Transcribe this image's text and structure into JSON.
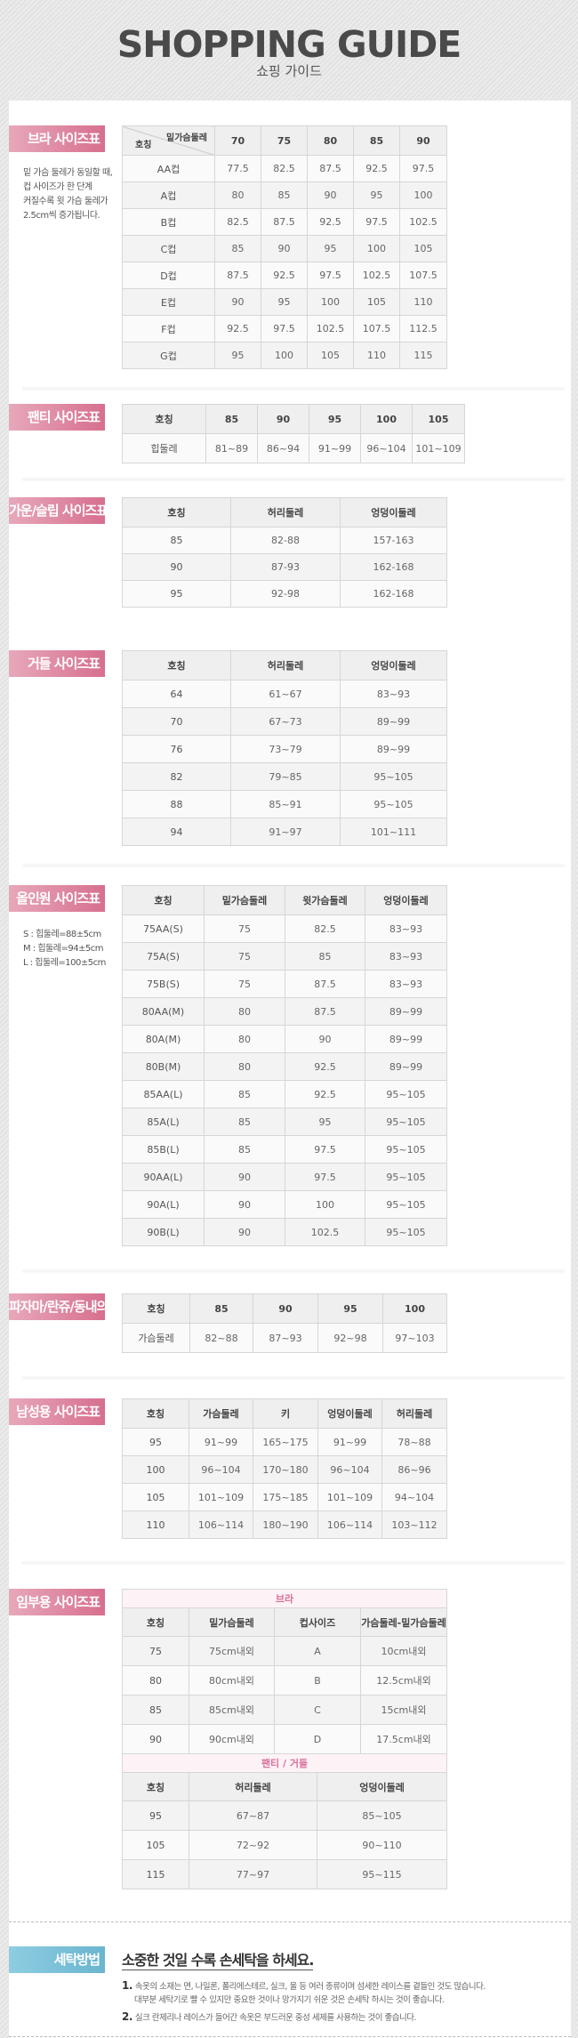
{
  "header": {
    "title": "SHOPPING GUIDE",
    "subtitle": "쇼핑 가이드"
  },
  "bra": {
    "label": "브라 사이즈표",
    "note": [
      "밑 가슴 둘레가 동일할 때,",
      "컵 사이즈가 한 단계",
      "커질수록 윗 가슴 둘레가",
      "2.5cm씩 증가됩니다."
    ],
    "corner_top": "밑가슴둘레",
    "corner_bottom": "호칭",
    "header": [
      "70",
      "75",
      "80",
      "85",
      "90"
    ],
    "rows": [
      [
        "AA컵",
        "77.5",
        "82.5",
        "87.5",
        "92.5",
        "97.5"
      ],
      [
        "A컵",
        "80",
        "85",
        "90",
        "95",
        "100"
      ],
      [
        "B컵",
        "82.5",
        "87.5",
        "92.5",
        "97.5",
        "102.5"
      ],
      [
        "C컵",
        "85",
        "90",
        "95",
        "100",
        "105"
      ],
      [
        "D컵",
        "87.5",
        "92.5",
        "97.5",
        "102.5",
        "107.5"
      ],
      [
        "E컵",
        "90",
        "95",
        "100",
        "105",
        "110"
      ],
      [
        "F컵",
        "92.5",
        "97.5",
        "102.5",
        "107.5",
        "112.5"
      ],
      [
        "G컵",
        "95",
        "100",
        "105",
        "110",
        "115"
      ]
    ]
  },
  "panty": {
    "label": "팬티 사이즈표",
    "header": [
      "호칭",
      "85",
      "90",
      "95",
      "100",
      "105"
    ],
    "rows": [
      [
        "힙둘레",
        "81~89",
        "86~94",
        "91~99",
        "96~104",
        "101~109"
      ]
    ]
  },
  "gown": {
    "label": "가운/슬립 사이즈표",
    "header": [
      "호칭",
      "허리둘레",
      "엉덩이둘레"
    ],
    "rows": [
      [
        "85",
        "82-88",
        "157-163"
      ],
      [
        "90",
        "87-93",
        "162-168"
      ],
      [
        "95",
        "92-98",
        "162-168"
      ]
    ]
  },
  "girdle": {
    "label": "거들 사이즈표",
    "header": [
      "호칭",
      "허리둘레",
      "엉덩이둘레"
    ],
    "rows": [
      [
        "64",
        "61~67",
        "83~93"
      ],
      [
        "70",
        "67~73",
        "89~99"
      ],
      [
        "76",
        "73~79",
        "89~99"
      ],
      [
        "82",
        "79~85",
        "95~105"
      ],
      [
        "88",
        "85~91",
        "95~105"
      ],
      [
        "94",
        "91~97",
        "101~111"
      ]
    ]
  },
  "allinone": {
    "label": "올인원 사이즈표",
    "note": [
      "S : 힙둘레=88±5cm",
      "M : 힙둘레=94±5cm",
      "L : 힙둘레=100±5cm"
    ],
    "header": [
      "호칭",
      "밑가슴둘레",
      "윗가슴둘레",
      "엉덩이둘레"
    ],
    "rows": [
      [
        "75AA(S)",
        "75",
        "82.5",
        "83~93"
      ],
      [
        "75A(S)",
        "75",
        "85",
        "83~93"
      ],
      [
        "75B(S)",
        "75",
        "87.5",
        "83~93"
      ],
      [
        "80AA(M)",
        "80",
        "87.5",
        "89~99"
      ],
      [
        "80A(M)",
        "80",
        "90",
        "89~99"
      ],
      [
        "80B(M)",
        "80",
        "92.5",
        "89~99"
      ],
      [
        "85AA(L)",
        "85",
        "92.5",
        "95~105"
      ],
      [
        "85A(L)",
        "85",
        "95",
        "95~105"
      ],
      [
        "85B(L)",
        "85",
        "97.5",
        "95~105"
      ],
      [
        "90AA(L)",
        "90",
        "97.5",
        "95~105"
      ],
      [
        "90A(L)",
        "90",
        "100",
        "95~105"
      ],
      [
        "90B(L)",
        "90",
        "102.5",
        "95~105"
      ]
    ]
  },
  "pajama": {
    "label": "파자마/란쥬/동내의",
    "header": [
      "호칭",
      "85",
      "90",
      "95",
      "100"
    ],
    "rows": [
      [
        "가슴둘레",
        "82~88",
        "87~93",
        "92~98",
        "97~103"
      ]
    ]
  },
  "men": {
    "label": "남성용 사이즈표",
    "header": [
      "호칭",
      "가슴둘레",
      "키",
      "엉덩이둘레",
      "허리둘레"
    ],
    "rows": [
      [
        "95",
        "91~99",
        "165~175",
        "91~99",
        "78~88"
      ],
      [
        "100",
        "96~104",
        "170~180",
        "96~104",
        "86~96"
      ],
      [
        "105",
        "101~109",
        "175~185",
        "101~109",
        "94~104"
      ],
      [
        "110",
        "106~114",
        "180~190",
        "106~114",
        "103~112"
      ]
    ]
  },
  "maternity": {
    "label": "임부용 사이즈표",
    "bra_title": "브라",
    "bra_header": [
      "호칭",
      "밑가슴둘레",
      "컵사이즈",
      "가슴둘레-밑가슴둘레"
    ],
    "bra_rows": [
      [
        "75",
        "75cm내외",
        "A",
        "10cm내외"
      ],
      [
        "80",
        "80cm내외",
        "B",
        "12.5cm내외"
      ],
      [
        "85",
        "85cm내외",
        "C",
        "15cm내외"
      ],
      [
        "90",
        "90cm내외",
        "D",
        "17.5cm내외"
      ]
    ],
    "panty_title": "팬티 / 거들",
    "panty_header": [
      "호칭",
      "허리둘레",
      "엉덩이둘레"
    ],
    "panty_rows": [
      [
        "95",
        "67~87",
        "85~105"
      ],
      [
        "105",
        "72~92",
        "90~110"
      ],
      [
        "115",
        "77~97",
        "95~115"
      ]
    ]
  },
  "laundry": {
    "label": "세탁방법",
    "title": "소중한 것일 수록 손세탁을 하세요.",
    "items": [
      {
        "num": "1.",
        "lines": [
          "속옷의 소재는 면, 나일론, 폴리에스테르, 실크, 울 등 여러 종류이며 섬세한 레이스를 곁들인 것도 많습니다.",
          "대부분 세탁기로 빨 수 있지만 중요한 것이나 망가지기 쉬운 것은 손세탁 하시는 것이 좋습니다."
        ]
      },
      {
        "num": "2.",
        "lines": [
          "실크 란제리나 레이스가 들어간 속옷은 부드러운 중성 세제를 사용하는 것이 좋습니다."
        ]
      }
    ]
  },
  "colors": {
    "label_pink": "#d76f8f",
    "label_blue": "#6ab5d0",
    "subheader_pink": "#d9709a"
  }
}
